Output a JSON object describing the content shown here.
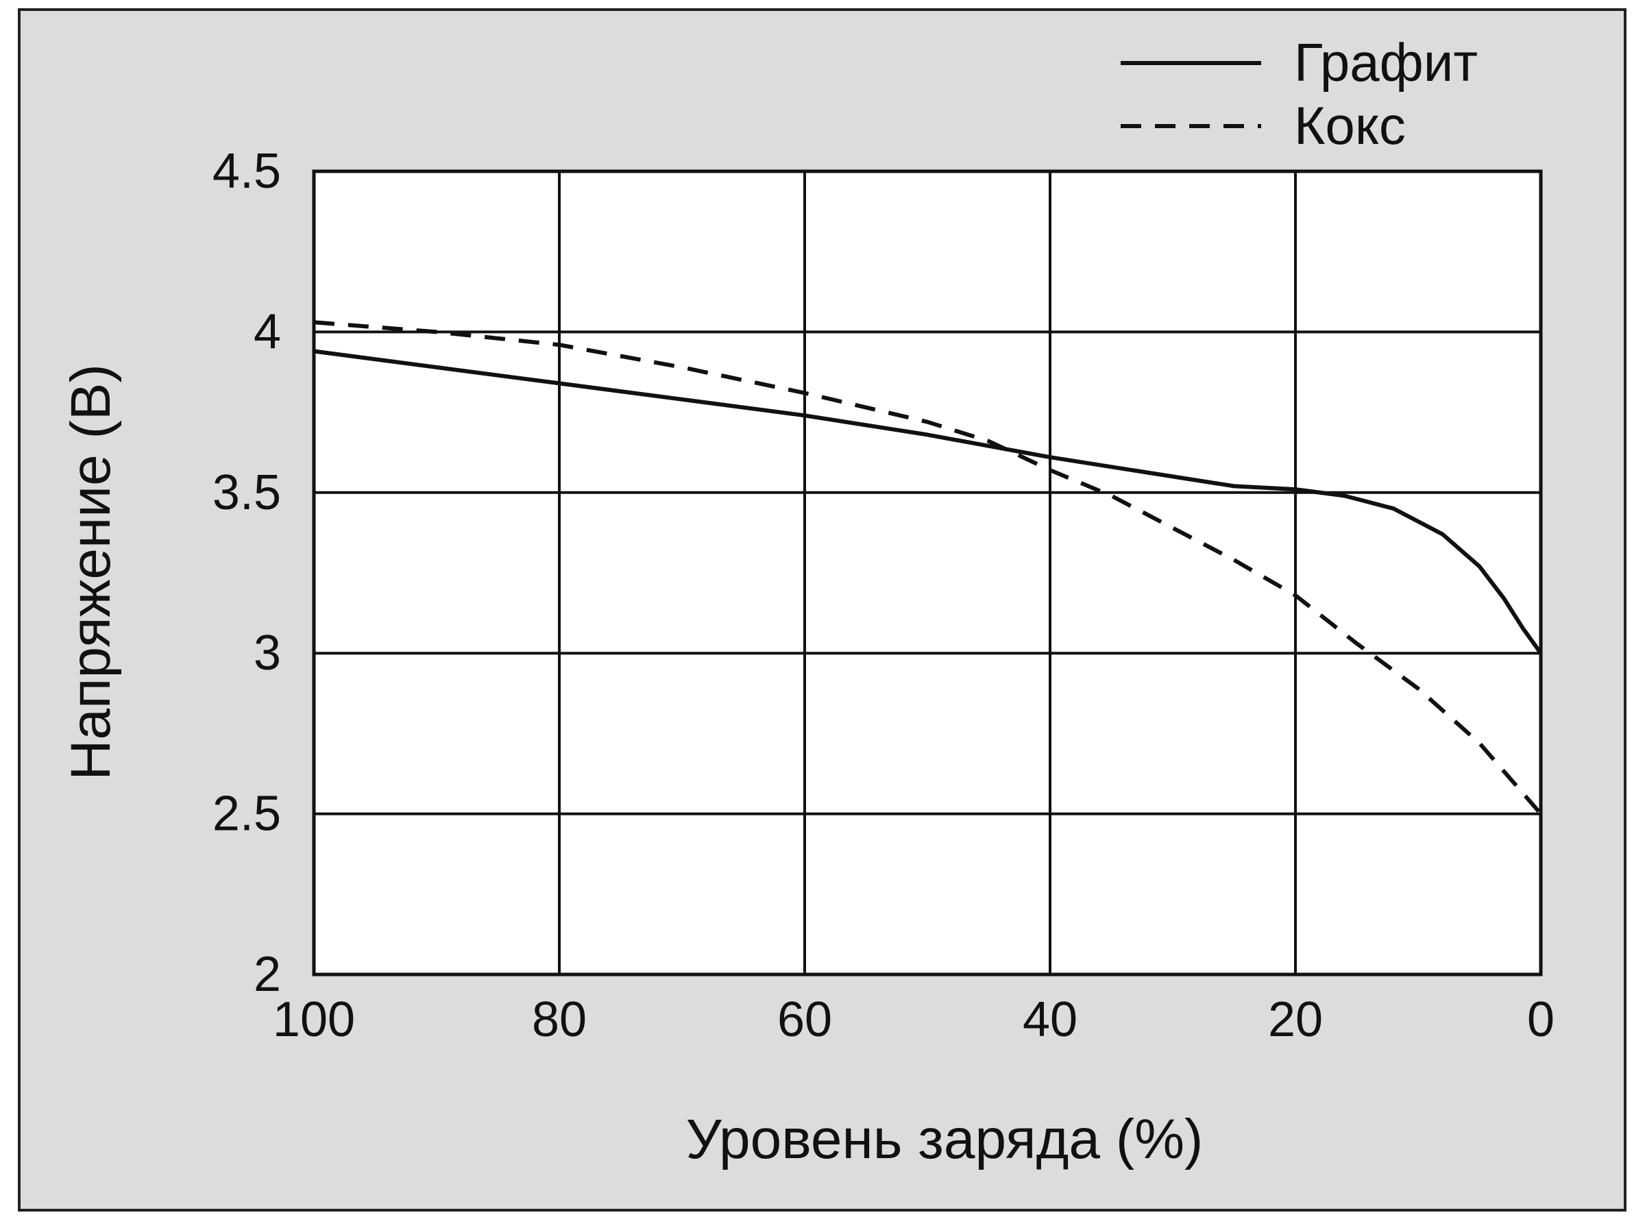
{
  "chart_data": {
    "type": "line",
    "title": "",
    "xlabel": "Уровень заряда (%)",
    "ylabel": "Напряжение (В)",
    "xlim": [
      100,
      0
    ],
    "ylim": [
      2,
      4.5
    ],
    "x_ticks": [
      "100",
      "80",
      "60",
      "40",
      "20",
      "0"
    ],
    "y_ticks": [
      "2",
      "2.5",
      "3",
      "3.5",
      "4",
      "4.5"
    ],
    "grid": true,
    "legend_position": "top-right",
    "series": [
      {
        "name": "Графит",
        "style": "solid",
        "color": "#111111",
        "x": [
          100,
          90,
          80,
          70,
          60,
          50,
          40,
          30,
          25,
          20,
          16,
          12,
          8,
          5,
          3,
          1.5,
          0
        ],
        "y": [
          3.94,
          3.89,
          3.84,
          3.79,
          3.74,
          3.68,
          3.61,
          3.55,
          3.52,
          3.51,
          3.49,
          3.45,
          3.37,
          3.27,
          3.17,
          3.08,
          3.0
        ]
      },
      {
        "name": "Кокс",
        "style": "dashed",
        "color": "#111111",
        "x": [
          100,
          90,
          80,
          70,
          60,
          50,
          45,
          40,
          35,
          30,
          25,
          20,
          15,
          10,
          5,
          0
        ],
        "y": [
          4.03,
          4.0,
          3.96,
          3.89,
          3.81,
          3.72,
          3.66,
          3.57,
          3.49,
          3.39,
          3.29,
          3.18,
          3.03,
          2.89,
          2.72,
          2.5
        ]
      }
    ]
  }
}
